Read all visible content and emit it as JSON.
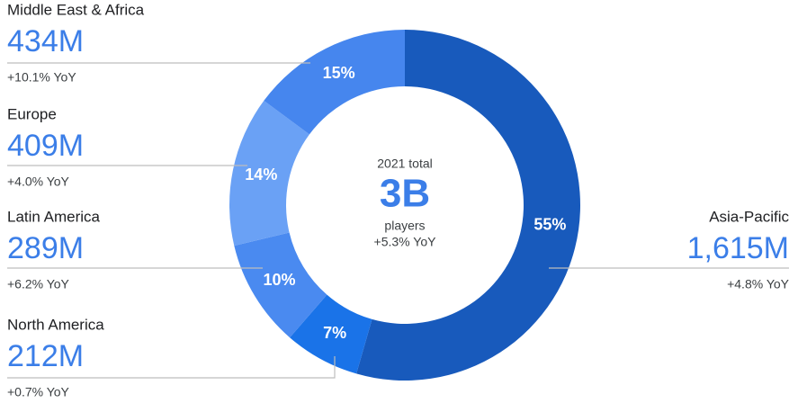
{
  "chart_data": {
    "type": "pie",
    "center_title": "2021 total",
    "center_value": "3B",
    "center_unit": "players",
    "center_growth": "+5.3% YoY",
    "categories": [
      "Asia-Pacific",
      "North America",
      "Latin America",
      "Europe",
      "Middle East & Africa"
    ],
    "values": [
      55,
      7,
      10,
      14,
      15
    ],
    "value_labels": [
      "55%",
      "7%",
      "10%",
      "14%",
      "15%"
    ],
    "players": [
      "1,615M",
      "212M",
      "289M",
      "409M",
      "434M"
    ],
    "growth": [
      "+4.8% YoY",
      "+0.7% YoY",
      "+6.2% YoY",
      "+4.0% YoY",
      "+10.1% YoY"
    ],
    "colors": [
      "#185abc",
      "#1a73e8",
      "#4a8af0",
      "#6aa1f5",
      "#4686ee"
    ]
  }
}
